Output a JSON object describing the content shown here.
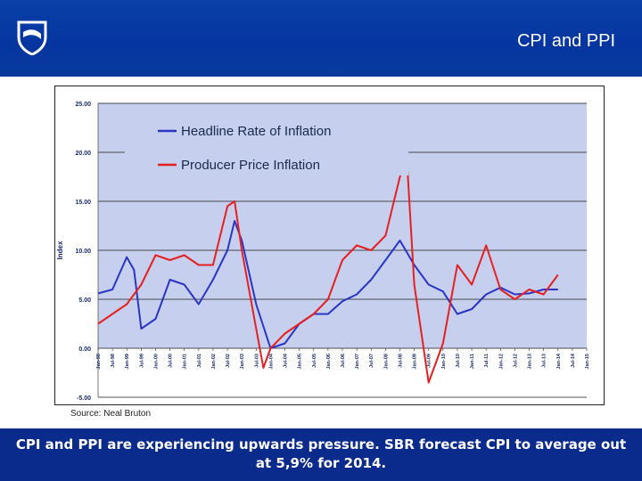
{
  "header": {
    "title": "CPI and PPI",
    "logo_icon": "shield-logo-icon",
    "bg_color": "#0a3fa8"
  },
  "source_note": "Source: Neal Bruton",
  "footer": {
    "text": "CPI and PPI are experiencing upwards pressure. SBR forecast CPI to average out at 5,9% for 2014.",
    "bg_color": "#0a2a8c"
  },
  "chart_data": {
    "type": "line",
    "ylabel": "Index",
    "ylim": [
      -5,
      25
    ],
    "yticks": [
      "25.00",
      "20.00",
      "15.00",
      "10.00",
      "5.00",
      "0.00",
      "-5.00"
    ],
    "ytick_values": [
      25,
      20,
      15,
      10,
      5,
      0,
      -5
    ],
    "grid": true,
    "legend_position": "top-left",
    "plot_bg": "#c7cfee",
    "x_range": [
      "Jan-98",
      "Jan-15"
    ],
    "xticks": [
      "Jan-98",
      "Jul-98",
      "Jan-99",
      "Jul-99",
      "Jan-00",
      "Jul-00",
      "Jan-01",
      "Jul-01",
      "Jan-02",
      "Jul-02",
      "Jan-03",
      "Jul-03",
      "Jan-04",
      "Jul-04",
      "Jan-05",
      "Jul-05",
      "Jan-06",
      "Jul-06",
      "Jan-07",
      "Jul-07",
      "Jan-08",
      "Jul-08",
      "Jan-09",
      "Jul-09",
      "Jan-10",
      "Jul-10",
      "Jan-11",
      "Jul-11",
      "Jan-12",
      "Jul-12",
      "Jan-13",
      "Jul-13",
      "Jan-14",
      "Jul-14",
      "Jan-15"
    ],
    "series": [
      {
        "name": "Headline Rate of Inflation",
        "color": "#2a35c4",
        "x": [
          "Jan-98",
          "Jul-98",
          "Jan-99",
          "Apr-99",
          "Jul-99",
          "Jan-00",
          "Jul-00",
          "Jan-01",
          "Jul-01",
          "Jan-02",
          "Jul-02",
          "Oct-02",
          "Jan-03",
          "Jul-03",
          "Jan-04",
          "Jul-04",
          "Jan-05",
          "Jul-05",
          "Jan-06",
          "Jul-06",
          "Jan-07",
          "Jul-07",
          "Jan-08",
          "Jul-08",
          "Jan-09",
          "Jul-09",
          "Jan-10",
          "Jul-10",
          "Jan-11",
          "Jul-11",
          "Jan-12",
          "Jul-12",
          "Jan-13",
          "Jul-13",
          "Jan-14"
        ],
        "values": [
          5.6,
          6.0,
          9.3,
          8.0,
          2.0,
          3.0,
          7.0,
          6.5,
          4.5,
          7.0,
          10.0,
          13.0,
          11.0,
          4.5,
          0.0,
          0.5,
          2.5,
          3.5,
          3.5,
          4.8,
          5.5,
          7.0,
          9.0,
          11.0,
          8.5,
          6.5,
          5.8,
          3.5,
          4.0,
          5.5,
          6.2,
          5.5,
          5.6,
          6.0,
          6.0
        ]
      },
      {
        "name": "Producer Price Inflation",
        "color": "#e42020",
        "x": [
          "Jan-98",
          "Jul-98",
          "Jan-99",
          "Jul-99",
          "Jan-00",
          "Jul-00",
          "Jan-01",
          "Jul-01",
          "Jan-02",
          "Jul-02",
          "Oct-02",
          "Jan-03",
          "Jul-03",
          "Oct-03",
          "Jan-04",
          "Jul-04",
          "Jan-05",
          "Jul-05",
          "Jan-06",
          "Jul-06",
          "Jan-07",
          "Jul-07",
          "Jan-08",
          "Jul-08",
          "Oct-08",
          "Jan-09",
          "Jul-09",
          "Jan-10",
          "Jul-10",
          "Jan-11",
          "Jul-11",
          "Jan-12",
          "Jul-12",
          "Jan-13",
          "Jul-13",
          "Jan-14"
        ],
        "values": [
          2.5,
          3.5,
          4.5,
          6.5,
          9.5,
          9.0,
          9.5,
          8.5,
          8.5,
          14.5,
          15.0,
          10.0,
          2.0,
          -2.0,
          0.0,
          1.5,
          2.5,
          3.5,
          5.0,
          9.0,
          10.5,
          10.0,
          11.5,
          17.5,
          19.0,
          6.5,
          -3.5,
          0.5,
          8.5,
          6.5,
          10.5,
          6.0,
          5.0,
          6.0,
          5.5,
          7.5
        ]
      }
    ]
  }
}
